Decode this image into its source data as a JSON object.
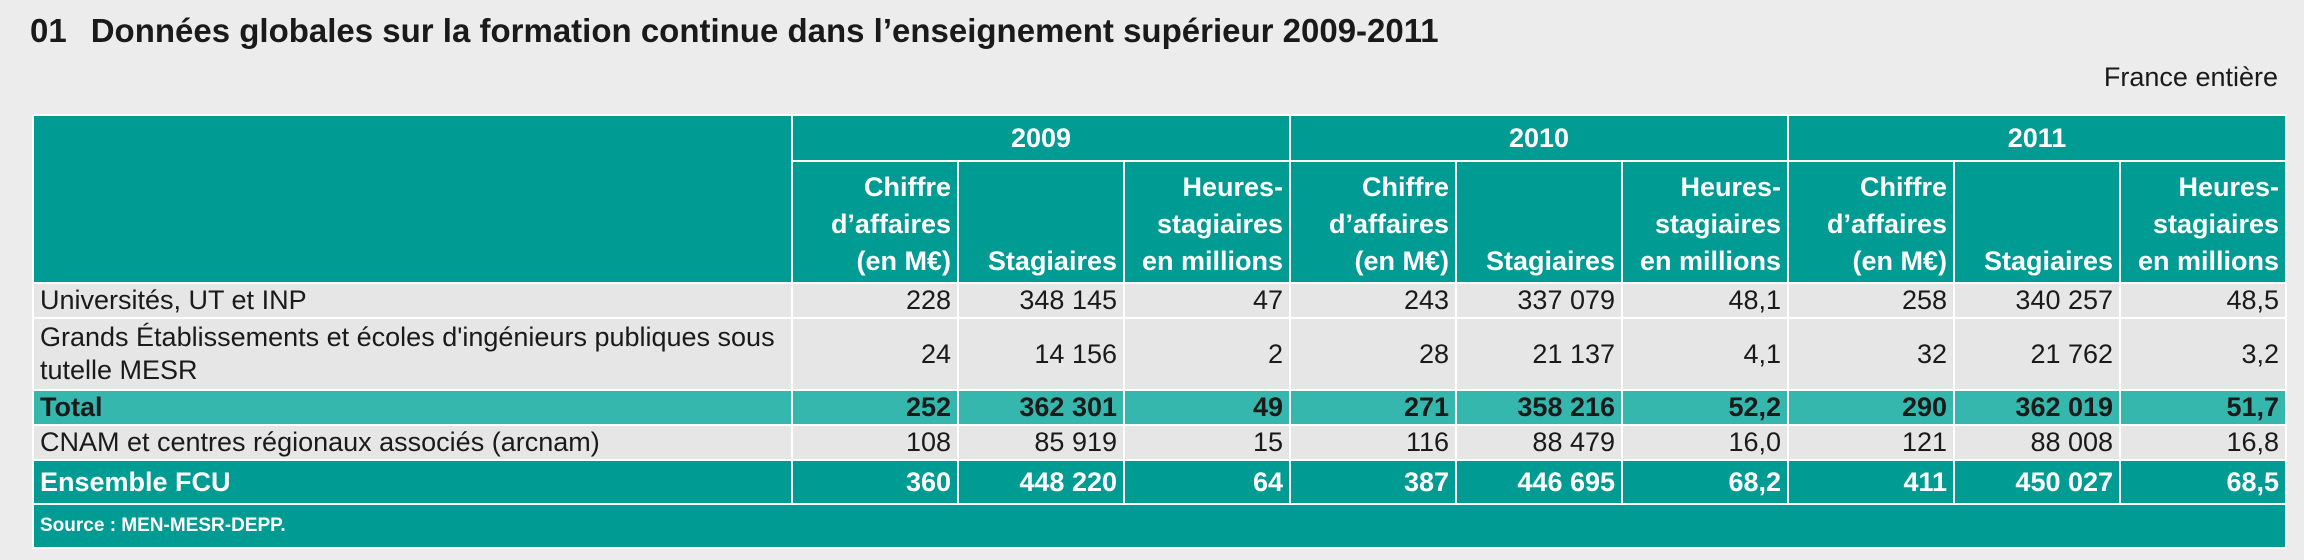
{
  "header": {
    "number": "01",
    "title": "Données globales sur la formation continue dans l’enseignement supérieur 2009-2011",
    "scope": "France entière"
  },
  "table": {
    "years": [
      "2009",
      "2010",
      "2011"
    ],
    "subheaders": [
      [
        "Chiffre",
        "d’affaires",
        "(en M€)"
      ],
      [
        "Stagiaires"
      ],
      [
        "Heures-",
        "stagiaires",
        "en millions"
      ]
    ],
    "rows": [
      {
        "label": "Universités, UT et INP",
        "values": [
          "228",
          "348 145",
          "47",
          "243",
          "337 079",
          "48,1",
          "258",
          "340 257",
          "48,5"
        ]
      },
      {
        "label_lines": [
          "Grands Établissements et écoles d'ingénieurs publiques sous",
          "tutelle MESR"
        ],
        "values": [
          "24",
          "14 156",
          "2",
          "28",
          "21 137",
          "4,1",
          "32",
          "21 762",
          "3,2"
        ]
      },
      {
        "label": "Total",
        "values": [
          "252",
          "362 301",
          "49",
          "271",
          "358 216",
          "52,2",
          "290",
          "362 019",
          "51,7"
        ]
      },
      {
        "label": "CNAM et centres régionaux associés (arcnam)",
        "values": [
          "108",
          "85 919",
          "15",
          "116",
          "88 479",
          "16,0",
          "121",
          "88 008",
          "16,8"
        ]
      },
      {
        "label": "Ensemble FCU",
        "values": [
          "360",
          "448 220",
          "64",
          "387",
          "446 695",
          "68,2",
          "411",
          "450 027",
          "68,5"
        ]
      }
    ],
    "source": "Source : MEN-MESR-DEPP."
  }
}
